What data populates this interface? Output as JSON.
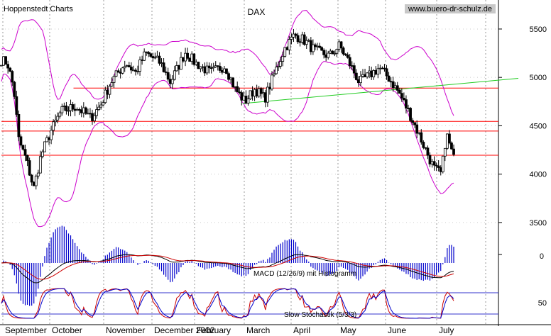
{
  "header": {
    "left": "Hoppenstedt Charts",
    "center": "DAX",
    "right": "www.buero-dr-schulz.de"
  },
  "chart_data": {
    "type": "candlestick",
    "ylim": [
      3250,
      5800
    ],
    "y_ticks": [
      3500,
      4000,
      4500,
      5000,
      5500
    ],
    "x_labels": [
      "September",
      "October",
      "November",
      "December 2002",
      "February",
      "March",
      "April",
      "May",
      "June",
      "July"
    ],
    "horizontal_lines": [
      4890,
      4545,
      4445,
      4195
    ],
    "trendline": {
      "from": [
        0.485,
        4730
      ],
      "to": [
        1.0,
        4990
      ]
    },
    "price_path": [
      [
        0,
        5180
      ],
      [
        0.012,
        5150
      ],
      [
        0.025,
        4880
      ],
      [
        0.035,
        4350
      ],
      [
        0.05,
        4150
      ],
      [
        0.065,
        3850
      ],
      [
        0.08,
        4200
      ],
      [
        0.1,
        4450
      ],
      [
        0.12,
        4650
      ],
      [
        0.15,
        4700
      ],
      [
        0.18,
        4580
      ],
      [
        0.2,
        4720
      ],
      [
        0.22,
        4950
      ],
      [
        0.25,
        5150
      ],
      [
        0.27,
        5050
      ],
      [
        0.29,
        5250
      ],
      [
        0.32,
        5150
      ],
      [
        0.34,
        4950
      ],
      [
        0.37,
        5260
      ],
      [
        0.39,
        5150
      ],
      [
        0.42,
        5050
      ],
      [
        0.45,
        5120
      ],
      [
        0.47,
        4880
      ],
      [
        0.49,
        4750
      ],
      [
        0.51,
        4880
      ],
      [
        0.53,
        4780
      ],
      [
        0.55,
        5050
      ],
      [
        0.57,
        5300
      ],
      [
        0.59,
        5440
      ],
      [
        0.61,
        5380
      ],
      [
        0.63,
        5280
      ],
      [
        0.66,
        5220
      ],
      [
        0.68,
        5330
      ],
      [
        0.7,
        5150
      ],
      [
        0.72,
        4950
      ],
      [
        0.74,
        5020
      ],
      [
        0.76,
        5100
      ],
      [
        0.78,
        4990
      ],
      [
        0.8,
        4840
      ],
      [
        0.82,
        4640
      ],
      [
        0.845,
        4350
      ],
      [
        0.87,
        4060
      ],
      [
        0.885,
        4000
      ],
      [
        0.895,
        4420
      ],
      [
        0.91,
        4160
      ]
    ],
    "indicators": [
      {
        "name": "MACD (12/26/9) mit Histogramm",
        "zero_label": "0"
      },
      {
        "name": "Slow Stochastik (5/3/3)",
        "level_label": "50",
        "levels": [
          80,
          20
        ]
      }
    ],
    "colors": {
      "candle": "#000000",
      "bollinger": "#cc00cc",
      "support_lines": "#ff0000",
      "trendline": "#22cc22",
      "macd_histogram": "#0000cc",
      "macd_line": "#000000",
      "signal_line": "#cc0000",
      "stochastic_k": "#cc0000",
      "stochastic_d": "#0000cc",
      "grid": "#999999"
    }
  }
}
